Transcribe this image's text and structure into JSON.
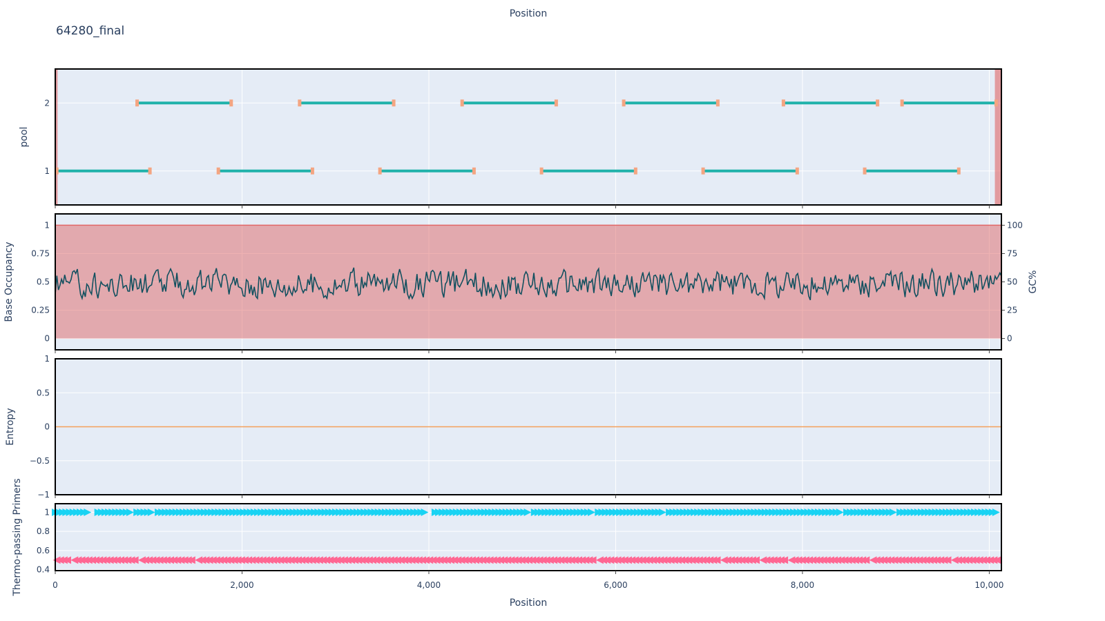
{
  "title": "64280_final",
  "top_axis_label": "Position",
  "colors": {
    "panel_bg": "#e5ecf6",
    "amplicon": "#20b2aa",
    "primer": "#f4a582",
    "region": "#e06666",
    "gc_line": "#12505f",
    "entropy": "#f5a05a",
    "primer_fwd": "#19d3f3",
    "primer_rev": "#ff6692"
  },
  "chart_data": [
    {
      "type": "line",
      "name": "amplicon-pools",
      "ylabel": "pool",
      "yticks": [
        1,
        2
      ],
      "xlim": [
        0,
        10130
      ],
      "ylim": [
        0.5,
        2.5
      ],
      "pools": [
        {
          "pool": 1,
          "amplicons": [
            [
              20,
              1010
            ],
            [
              1750,
              2750
            ],
            [
              3480,
              4480
            ],
            [
              5210,
              6210
            ],
            [
              6940,
              7940
            ],
            [
              8670,
              9670
            ]
          ]
        },
        {
          "pool": 2,
          "amplicons": [
            [
              880,
              1880
            ],
            [
              2620,
              3620
            ],
            [
              4360,
              5360
            ],
            [
              6090,
              7090
            ],
            [
              7800,
              8800
            ],
            [
              9070,
              10070
            ]
          ]
        }
      ],
      "excluded_regions": [
        [
          0,
          25
        ],
        [
          10060,
          10130
        ]
      ]
    },
    {
      "type": "line",
      "name": "occupancy-gc",
      "ylabel": "Base Occupancy",
      "y2label": "GC%",
      "yticks": [
        0,
        0.25,
        0.5,
        0.75,
        1
      ],
      "y2ticks": [
        0,
        25,
        50,
        75,
        100
      ],
      "ylim": [
        -0.1,
        1.1
      ],
      "occupancy": 1,
      "gc_points": 600,
      "gc_mean": 0.48
    },
    {
      "type": "line",
      "name": "entropy",
      "ylabel": "Entropy",
      "yticks": [
        -1,
        -0.5,
        0,
        0.5,
        1
      ],
      "ylim": [
        -1,
        1
      ],
      "value": 0
    },
    {
      "type": "scatter",
      "name": "thermo-primers",
      "ylabel": "Thermo-passing Primers",
      "yticks": [
        0.4,
        0.6,
        0.8,
        1
      ],
      "ylim": [
        0.39,
        1.09
      ],
      "forward_y": 1,
      "reverse_y": 0.5,
      "forward_gaps": [
        [
          380,
          440
        ],
        [
          820,
          860
        ],
        [
          1060,
          1080
        ],
        [
          3350,
          3380
        ],
        [
          3990,
          4030
        ],
        [
          4300,
          4330
        ],
        [
          5090,
          5120
        ],
        [
          5770,
          5800
        ],
        [
          6530,
          6550
        ],
        [
          7380,
          7400
        ],
        [
          8420,
          8440
        ],
        [
          9000,
          9030
        ],
        [
          9960,
          9990
        ]
      ],
      "reverse_gaps": [
        [
          150,
          180
        ],
        [
          840,
          880
        ],
        [
          1080,
          1100
        ],
        [
          1460,
          1490
        ],
        [
          3120,
          3150
        ],
        [
          4600,
          4630
        ],
        [
          5770,
          5800
        ],
        [
          6350,
          6370
        ],
        [
          6510,
          6530
        ],
        [
          7100,
          7120
        ],
        [
          7520,
          7560
        ],
        [
          7800,
          7830
        ],
        [
          8690,
          8720
        ],
        [
          9550,
          9580
        ]
      ]
    }
  ],
  "x_axis": {
    "label": "Position",
    "ticks": [
      0,
      2000,
      4000,
      6000,
      8000,
      10000
    ],
    "tick_labels": [
      "0",
      "2,000",
      "4,000",
      "6,000",
      "8,000",
      "10,000"
    ]
  }
}
